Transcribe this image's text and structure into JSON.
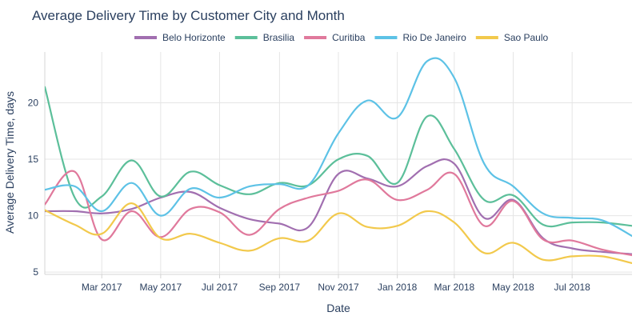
{
  "chart_data": {
    "type": "line",
    "title": "Average Delivery Time by Customer City and Month",
    "xlabel": "Date",
    "ylabel": "Average Delivery Time, days",
    "x": [
      "2017-01",
      "2017-02",
      "2017-03",
      "2017-04",
      "2017-05",
      "2017-06",
      "2017-07",
      "2017-08",
      "2017-09",
      "2017-10",
      "2017-11",
      "2017-12",
      "2018-01",
      "2018-02",
      "2018-03",
      "2018-04",
      "2018-05",
      "2018-06",
      "2018-07",
      "2018-08",
      "2018-09"
    ],
    "xlim": [
      "2017-01-01",
      "2018-09-01"
    ],
    "ylim": [
      4.8,
      24.5
    ],
    "x_ticks": [
      {
        "label": "Mar 2017",
        "date": "2017-03-01"
      },
      {
        "label": "May 2017",
        "date": "2017-05-01"
      },
      {
        "label": "Jul 2017",
        "date": "2017-07-01"
      },
      {
        "label": "Sep 2017",
        "date": "2017-09-01"
      },
      {
        "label": "Nov 2017",
        "date": "2017-11-01"
      },
      {
        "label": "Jan 2018",
        "date": "2018-01-01"
      },
      {
        "label": "Mar 2018",
        "date": "2018-03-01"
      },
      {
        "label": "May 2018",
        "date": "2018-05-01"
      },
      {
        "label": "Jul 2018",
        "date": "2018-07-01"
      }
    ],
    "y_ticks": [
      5,
      10,
      15,
      20
    ],
    "series": [
      {
        "name": "Belo Horizonte",
        "color": "#a16fb0",
        "values": [
          10.4,
          10.4,
          10.2,
          10.6,
          11.6,
          12.1,
          10.7,
          9.7,
          9.3,
          9.0,
          13.7,
          13.3,
          12.6,
          14.4,
          14.6,
          9.8,
          11.4,
          8.0,
          7.1,
          6.8,
          6.6
        ]
      },
      {
        "name": "Brasilia",
        "color": "#5cbf9a",
        "values": [
          21.4,
          11.6,
          11.7,
          14.9,
          11.7,
          13.9,
          12.7,
          11.9,
          12.9,
          12.7,
          15.0,
          15.3,
          12.9,
          18.8,
          15.9,
          11.4,
          11.8,
          9.2,
          9.4,
          9.4,
          9.1
        ]
      },
      {
        "name": "Curitiba",
        "color": "#e0799c",
        "values": [
          11.0,
          13.9,
          7.9,
          10.4,
          8.1,
          10.6,
          10.3,
          8.3,
          10.6,
          11.6,
          12.2,
          13.2,
          11.4,
          12.3,
          13.7,
          9.1,
          11.3,
          7.9,
          7.8,
          7.0,
          6.5
        ]
      },
      {
        "name": "Rio De Janeiro",
        "color": "#5dc2e6",
        "values": [
          12.3,
          12.6,
          10.4,
          12.9,
          10.0,
          12.4,
          11.6,
          12.6,
          12.8,
          12.7,
          17.3,
          20.2,
          18.7,
          23.7,
          22.2,
          14.6,
          12.6,
          10.2,
          9.8,
          9.6,
          8.2
        ]
      },
      {
        "name": "Sao Paulo",
        "color": "#f2c94c",
        "values": [
          10.5,
          9.2,
          8.4,
          11.1,
          8.0,
          8.4,
          7.6,
          6.9,
          8.0,
          7.8,
          10.2,
          9.0,
          9.1,
          10.4,
          9.4,
          6.7,
          7.6,
          6.1,
          6.4,
          6.4,
          5.8
        ]
      }
    ]
  }
}
